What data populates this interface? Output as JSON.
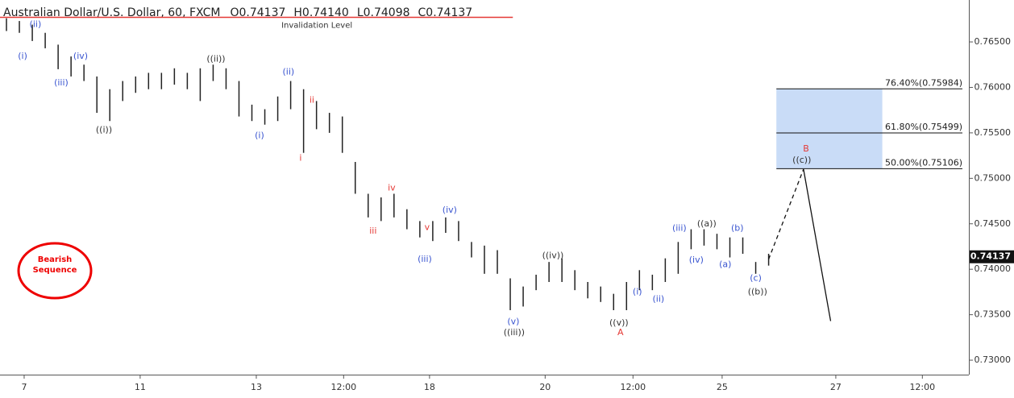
{
  "header": {
    "title": "Australian Dollar/U.S. Dollar, 60, FXCM",
    "ohlc": [
      "O0.74137",
      "H0.74140",
      "L0.74098",
      "C0.74137"
    ]
  },
  "chart_data": {
    "type": "ohlc",
    "x": [
      0,
      1,
      2,
      3,
      4,
      5,
      6,
      7,
      8,
      9,
      10,
      11,
      12,
      13,
      14,
      15,
      16,
      17,
      18,
      19,
      20,
      21,
      22,
      23,
      24,
      25,
      26,
      27,
      28,
      29,
      30,
      31,
      32,
      33,
      34,
      35,
      36,
      37,
      38,
      39,
      40,
      41,
      42,
      43,
      44,
      45,
      46,
      47,
      48,
      49,
      50,
      51,
      52,
      53,
      54,
      55,
      56,
      57,
      58,
      59
    ],
    "series": [
      {
        "color": "#222222",
        "high": [
          0.7676,
          0.7673,
          0.7669,
          0.766,
          0.7647,
          0.7634,
          0.7625,
          0.7612,
          0.7598,
          0.7607,
          0.7612,
          0.7616,
          0.7616,
          0.7621,
          0.7616,
          0.7621,
          0.7625,
          0.7621,
          0.7607,
          0.7581,
          0.7576,
          0.759,
          0.7607,
          0.7598,
          0.7585,
          0.7572,
          0.7568,
          0.7518,
          0.7483,
          0.7479,
          0.7483,
          0.7466,
          0.7453,
          0.7453,
          0.7457,
          0.7453,
          0.743,
          0.7426,
          0.7421,
          0.739,
          0.7381,
          0.7394,
          0.7408,
          0.7412,
          0.7399,
          0.7386,
          0.7381,
          0.7373,
          0.7386,
          0.7399,
          0.7394,
          0.7412,
          0.743,
          0.7444,
          0.7444,
          0.7439,
          0.7435,
          0.7435,
          0.7408,
          0.7417
        ],
        "low": [
          0.7662,
          0.766,
          0.7651,
          0.7643,
          0.762,
          0.7612,
          0.7607,
          0.7572,
          0.7563,
          0.7585,
          0.7594,
          0.7598,
          0.7598,
          0.7603,
          0.7598,
          0.7585,
          0.7607,
          0.7598,
          0.7568,
          0.7563,
          0.7559,
          0.7563,
          0.7576,
          0.7528,
          0.7554,
          0.755,
          0.7528,
          0.7483,
          0.7457,
          0.7453,
          0.7457,
          0.7444,
          0.7435,
          0.7431,
          0.744,
          0.7431,
          0.7413,
          0.7395,
          0.7395,
          0.7355,
          0.7359,
          0.7377,
          0.7386,
          0.7386,
          0.7377,
          0.7368,
          0.7364,
          0.7355,
          0.7355,
          0.7377,
          0.7377,
          0.7386,
          0.7395,
          0.7422,
          0.7426,
          0.7422,
          0.7413,
          0.7417,
          0.7395,
          0.7404
        ]
      }
    ],
    "xlim": [
      -0.5,
      74.5
    ],
    "ylim": [
      0.72841,
      0.76961
    ],
    "xticks": [
      {
        "value": 1.37,
        "label": "7"
      },
      {
        "value": 10.35,
        "label": "11"
      },
      {
        "value": 19.34,
        "label": "13"
      },
      {
        "value": 26.1,
        "label": "12:00"
      },
      {
        "value": 32.75,
        "label": "18"
      },
      {
        "value": 41.7,
        "label": "20"
      },
      {
        "value": 48.5,
        "label": "12:00"
      },
      {
        "value": 55.4,
        "label": "25"
      },
      {
        "value": 64.2,
        "label": "27"
      },
      {
        "value": 70.9,
        "label": "12:00"
      }
    ],
    "yticks": [
      {
        "value": 0.73,
        "label": "0.73000"
      },
      {
        "value": 0.735,
        "label": "0.73500"
      },
      {
        "value": 0.74,
        "label": "0.74000"
      },
      {
        "value": 0.745,
        "label": "0.74500"
      },
      {
        "value": 0.75,
        "label": "0.75000"
      },
      {
        "value": 0.755,
        "label": "0.75500"
      },
      {
        "value": 0.76,
        "label": "0.76000"
      },
      {
        "value": 0.765,
        "label": "0.76500"
      }
    ],
    "last_price": {
      "value": 0.74137,
      "label": "0.74137"
    },
    "invalidation": {
      "label": "Invalidation Level",
      "value": 0.7677,
      "x": [
        -0.5,
        39.2
      ],
      "color": "#e53935"
    },
    "fib": {
      "x": [
        59.6,
        67.8
      ],
      "line_end": 74.0,
      "color": "#c9dcf7",
      "levels": [
        {
          "value": 0.75984,
          "label": "76.40%(0.75984)"
        },
        {
          "value": 0.75499,
          "label": "61.80%(0.75499)"
        },
        {
          "value": 0.75106,
          "label": "50.00%(0.75106)"
        }
      ]
    },
    "projection": {
      "x": [
        59,
        61.7,
        63.8
      ],
      "y": [
        0.7411,
        0.751,
        0.7343
      ]
    },
    "annotation": "Bearish Sequence",
    "wave_labels": [
      {
        "text": "(ii)",
        "x": 2.24,
        "y": 0.7669,
        "color": "#3a55d0"
      },
      {
        "text": "(i)",
        "x": 1.25,
        "y": 0.7634,
        "color": "#3a55d0"
      },
      {
        "text": "(iv)",
        "x": 5.74,
        "y": 0.7634,
        "color": "#3a55d0"
      },
      {
        "text": "(iii)",
        "x": 4.24,
        "y": 0.7605,
        "color": "#3a55d0"
      },
      {
        "text": "((i))",
        "x": 7.55,
        "y": 0.7553,
        "color": "#333333"
      },
      {
        "text": "((ii))",
        "x": 16.22,
        "y": 0.7631,
        "color": "#333333"
      },
      {
        "text": "(ii)",
        "x": 21.83,
        "y": 0.7617,
        "color": "#3a55d0"
      },
      {
        "text": "(i)",
        "x": 19.59,
        "y": 0.7547,
        "color": "#3a55d0"
      },
      {
        "text": "ii",
        "x": 23.64,
        "y": 0.7586,
        "color": "#e53935"
      },
      {
        "text": "i",
        "x": 22.77,
        "y": 0.7522,
        "color": "#e53935"
      },
      {
        "text": "iv",
        "x": 29.82,
        "y": 0.7489,
        "color": "#e53935"
      },
      {
        "text": "iii",
        "x": 28.38,
        "y": 0.7442,
        "color": "#e53935"
      },
      {
        "text": "v",
        "x": 32.56,
        "y": 0.7446,
        "color": "#e53935"
      },
      {
        "text": "(iv)",
        "x": 34.31,
        "y": 0.7465,
        "color": "#3a55d0"
      },
      {
        "text": "(iii)",
        "x": 32.38,
        "y": 0.7411,
        "color": "#3a55d0"
      },
      {
        "text": "((iv))",
        "x": 42.3,
        "y": 0.7415,
        "color": "#333333"
      },
      {
        "text": "(v)",
        "x": 39.24,
        "y": 0.7342,
        "color": "#3a55d0"
      },
      {
        "text": "((iii))",
        "x": 39.3,
        "y": 0.733,
        "color": "#333333"
      },
      {
        "text": "((v))",
        "x": 47.41,
        "y": 0.7341,
        "color": "#333333"
      },
      {
        "text": "A",
        "x": 47.53,
        "y": 0.733,
        "color": "#e53935"
      },
      {
        "text": "(i)",
        "x": 48.84,
        "y": 0.7375,
        "color": "#3a55d0"
      },
      {
        "text": "(ii)",
        "x": 50.47,
        "y": 0.7367,
        "color": "#3a55d0"
      },
      {
        "text": "(iii)",
        "x": 52.09,
        "y": 0.7445,
        "color": "#3a55d0"
      },
      {
        "text": "((a))",
        "x": 54.21,
        "y": 0.745,
        "color": "#333333"
      },
      {
        "text": "(b)",
        "x": 56.58,
        "y": 0.7445,
        "color": "#3a55d0"
      },
      {
        "text": "(iv)",
        "x": 53.4,
        "y": 0.741,
        "color": "#3a55d0"
      },
      {
        "text": "(a)",
        "x": 55.64,
        "y": 0.7405,
        "color": "#3a55d0"
      },
      {
        "text": "(c)",
        "x": 58.0,
        "y": 0.739,
        "color": "#3a55d0"
      },
      {
        "text": "((b))",
        "x": 58.14,
        "y": 0.7375,
        "color": "#333333"
      },
      {
        "text": "B",
        "x": 61.9,
        "y": 0.7532,
        "color": "#e53935"
      },
      {
        "text": "((c))",
        "x": 61.57,
        "y": 0.752,
        "color": "#333333"
      }
    ]
  }
}
